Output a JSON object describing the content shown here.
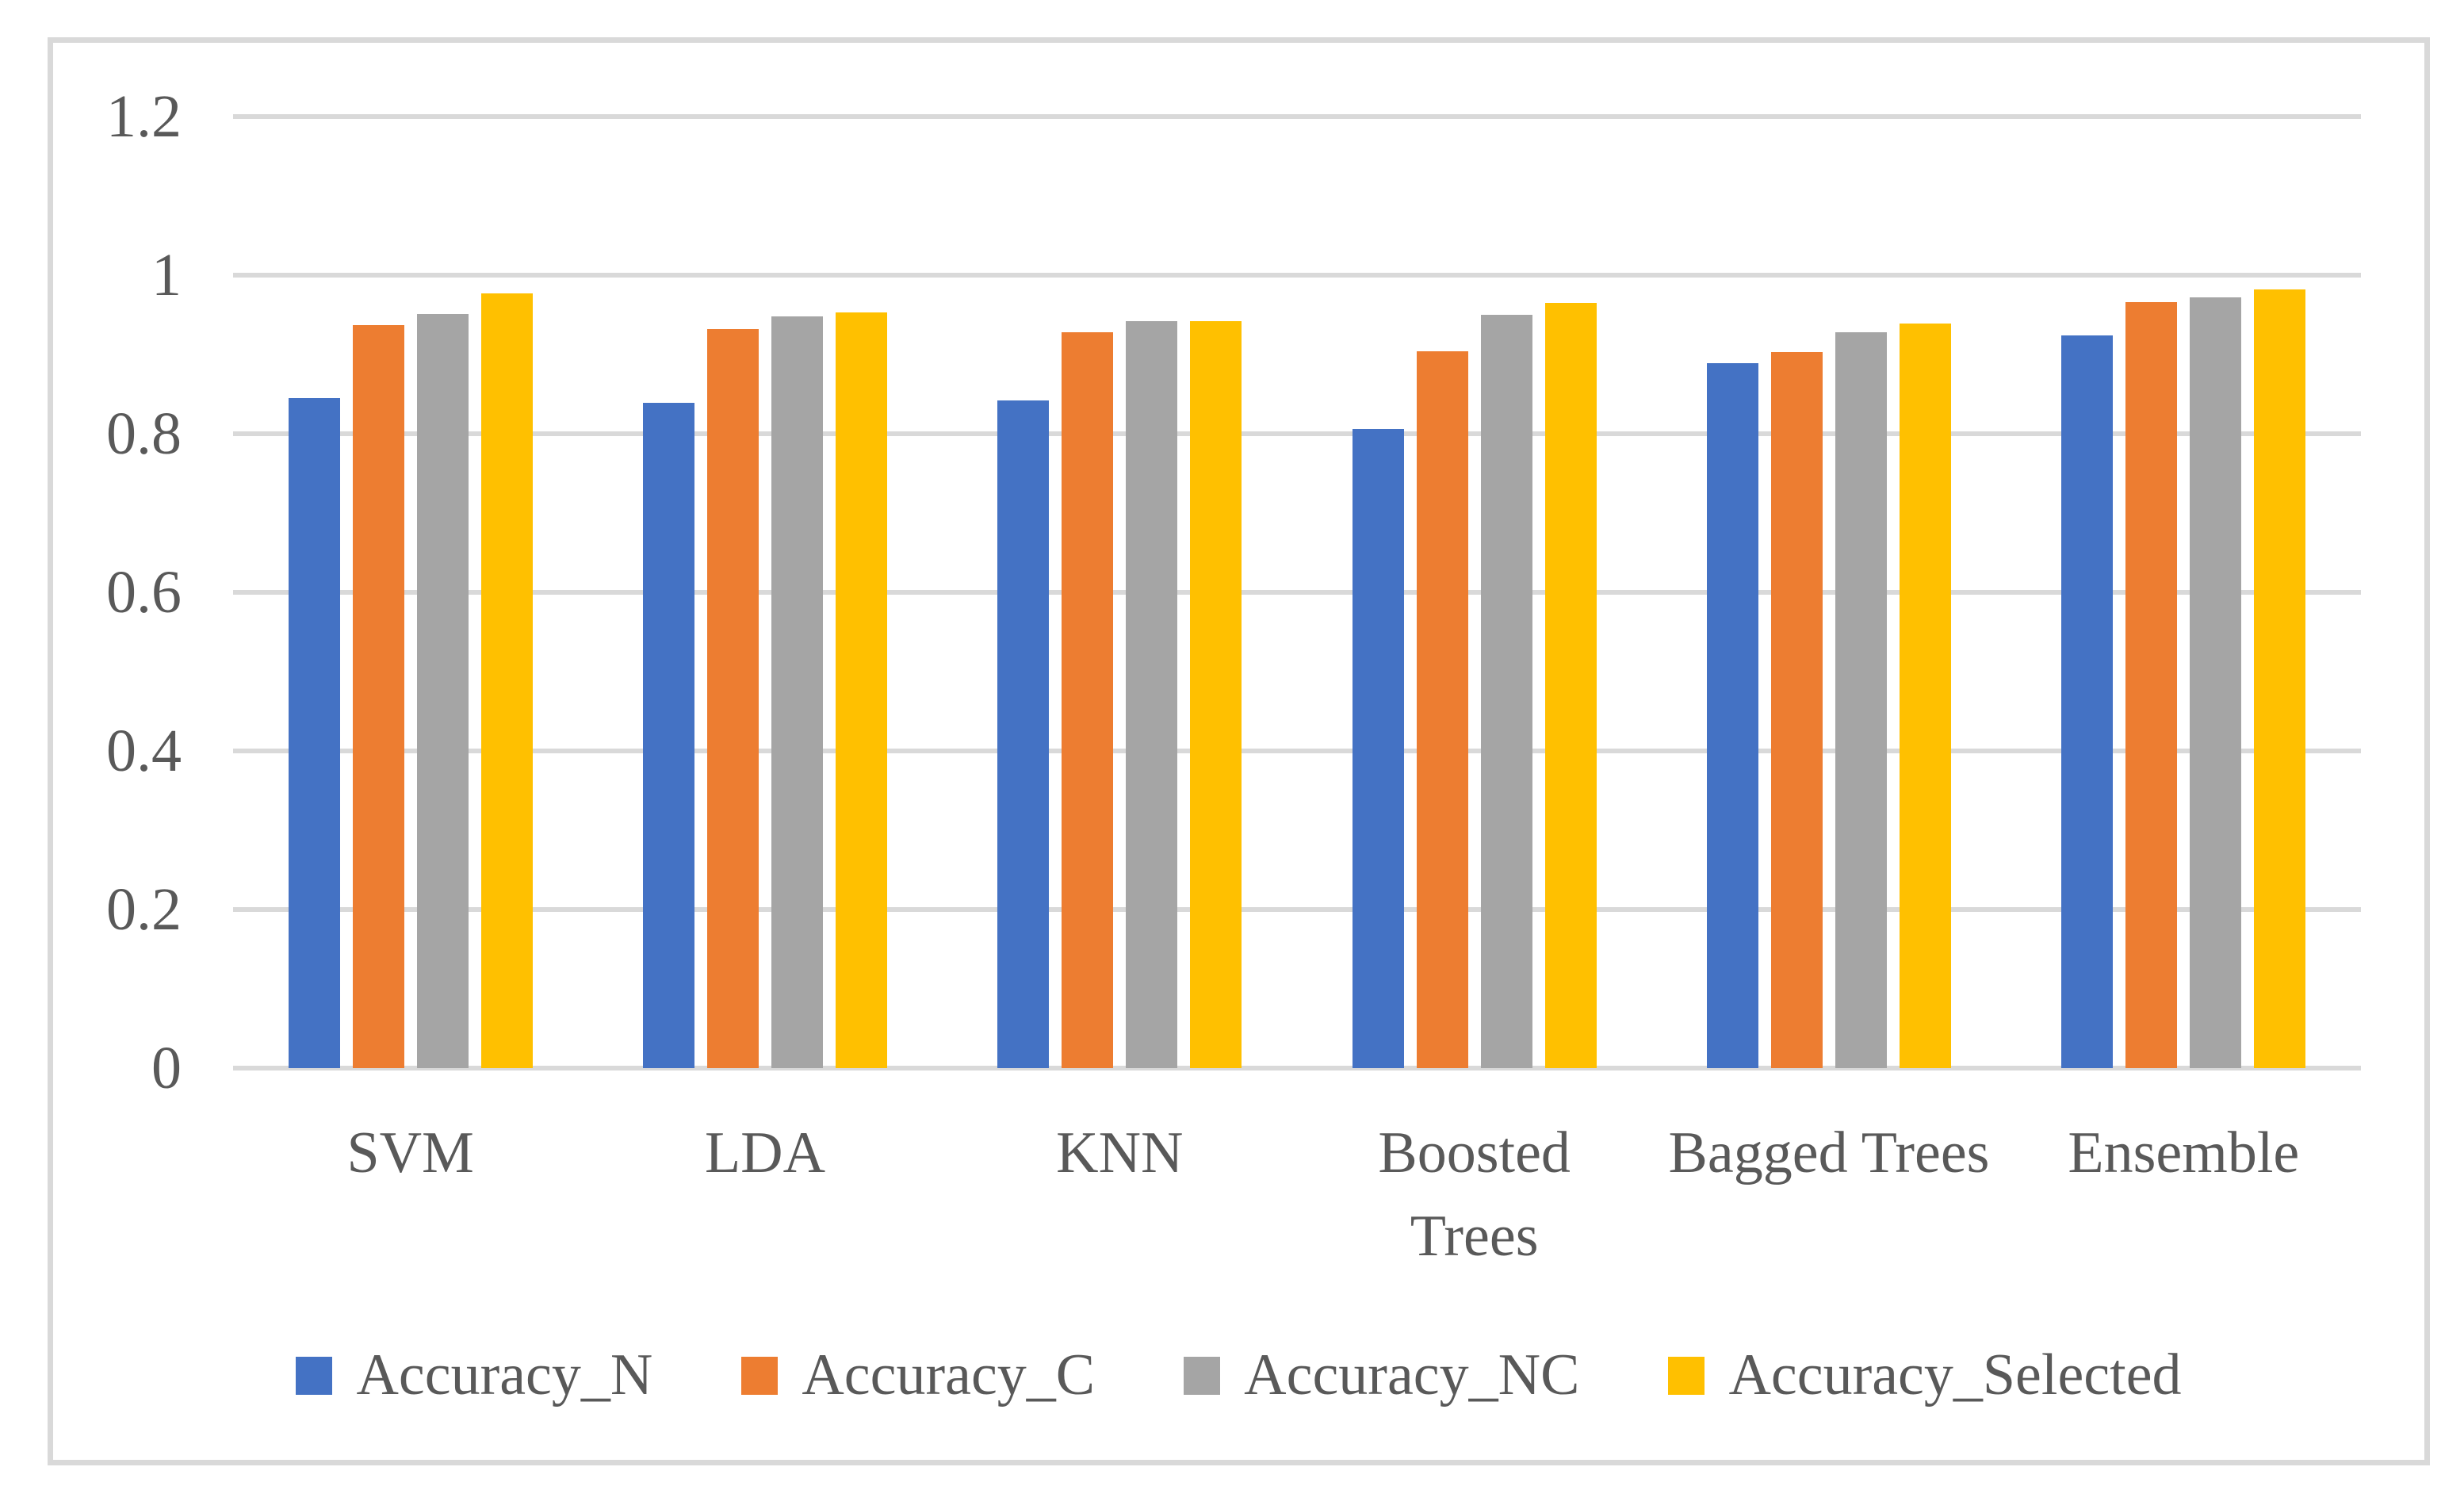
{
  "chart_data": {
    "type": "bar",
    "title": "",
    "categories": [
      "SVM",
      "LDA",
      "KNN",
      "Boosted\nTrees",
      "Bagged Trees",
      "Ensemble"
    ],
    "series": [
      {
        "name": "Accuracy_N",
        "color": "#4472C4",
        "values": [
          0.845,
          0.839,
          0.842,
          0.806,
          0.889,
          0.924
        ]
      },
      {
        "name": "Accuracy_C",
        "color": "#ED7D31",
        "values": [
          0.937,
          0.932,
          0.928,
          0.904,
          0.903,
          0.966
        ]
      },
      {
        "name": "Accuracy_NC",
        "color": "#A5A5A5",
        "values": [
          0.951,
          0.948,
          0.942,
          0.95,
          0.928,
          0.972
        ]
      },
      {
        "name": "Accuracy_Selected",
        "color": "#FFC000",
        "values": [
          0.977,
          0.953,
          0.942,
          0.965,
          0.939,
          0.982
        ]
      }
    ],
    "y_axis": {
      "min": 0,
      "max": 1.2,
      "step": 0.2,
      "tick_labels": [
        "1.2",
        "1",
        "0.8",
        "0.6",
        "0.4",
        "0.2",
        "0"
      ]
    },
    "xlabel": "",
    "ylabel": "",
    "grid": true,
    "legend_position": "bottom",
    "styles": {
      "gridline_color": "#D9D9D9",
      "frame_border_color": "#D9D9D9",
      "text_color": "#595959",
      "background_color": "#FFFFFF"
    }
  }
}
